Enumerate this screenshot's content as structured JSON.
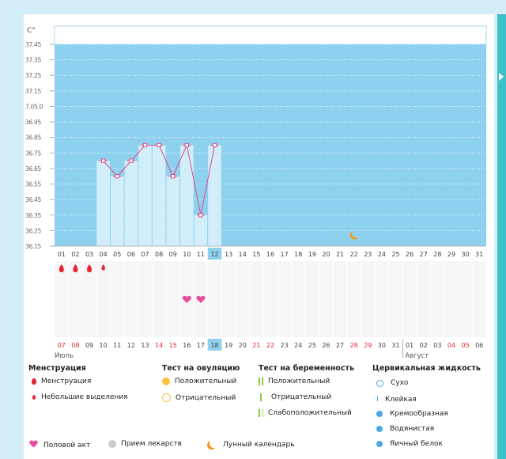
{
  "chart_data": {
    "type": "line",
    "y_unit": "С°",
    "y_ticks": [
      "37.45",
      "37.35",
      "37.25",
      "37.15",
      "7.05.0",
      "36.95",
      "36.85",
      "36.75",
      "36.65",
      "36.55",
      "36.45",
      "36.35",
      "36.25",
      "36.15"
    ],
    "ylim": [
      36.15,
      37.45
    ],
    "x_days": [
      "01",
      "02",
      "03",
      "04",
      "05",
      "06",
      "07",
      "08",
      "09",
      "10",
      "11",
      "12",
      "13",
      "14",
      "15",
      "16",
      "17",
      "18",
      "19",
      "20",
      "21",
      "22",
      "23",
      "24",
      "25",
      "26",
      "27",
      "28",
      "29",
      "30",
      "31"
    ],
    "highlight_day": "12",
    "series": [
      {
        "days": [
          "04",
          "05",
          "06",
          "07",
          "08",
          "09",
          "10",
          "11",
          "12"
        ],
        "values": [
          36.7,
          36.6,
          36.7,
          36.8,
          36.8,
          36.6,
          36.8,
          36.35,
          36.8
        ]
      }
    ],
    "cycle_days": [
      "07",
      "08",
      "09",
      "10",
      "11",
      "12",
      "13",
      "14",
      "15",
      "16",
      "17",
      "18",
      "19",
      "20",
      "21",
      "22",
      "23",
      "24",
      "25",
      "26",
      "27",
      "28",
      "29",
      "30",
      "31",
      "01",
      "02",
      "03",
      "04",
      "05",
      "06"
    ],
    "cycle_red_days": [
      "07",
      "08",
      "14",
      "15",
      "21",
      "22",
      "28",
      "29",
      "04",
      "05"
    ],
    "cycle_highlight_day": "18",
    "month_july": "Июль",
    "month_august": "Август",
    "menstruation_days": [
      "01",
      "02",
      "03",
      "04"
    ],
    "intercourse_days": [
      "10",
      "11"
    ],
    "moon_day": "22",
    "colors": {
      "area": "#8ed1ef",
      "bar": "#d2eefa",
      "line": "#e04a84",
      "red": "#e8222e",
      "moon": "#f59a12",
      "heart": "#ec4a9f"
    }
  },
  "legend": {
    "menstruation_title": "Менструация",
    "menstruation_items": [
      "Менструация",
      "Небольшие выделения"
    ],
    "ovulation_title": "Тест на овуляцию",
    "ovulation_items": [
      "Положительный",
      "Отрицательный"
    ],
    "pregnancy_title": "Тест на беременность",
    "pregnancy_items": [
      "Положительный",
      "Отрицательный",
      "Слабоположительный"
    ],
    "cervical_title": "Цервикальная жидкость",
    "cervical_items": [
      "Сухо",
      "Клейкая",
      "Кремообразная",
      "Водянистая",
      "Яичный белок"
    ],
    "bottom_items": [
      "Половой акт",
      "Прием лекарств",
      "Лунный календарь"
    ]
  }
}
